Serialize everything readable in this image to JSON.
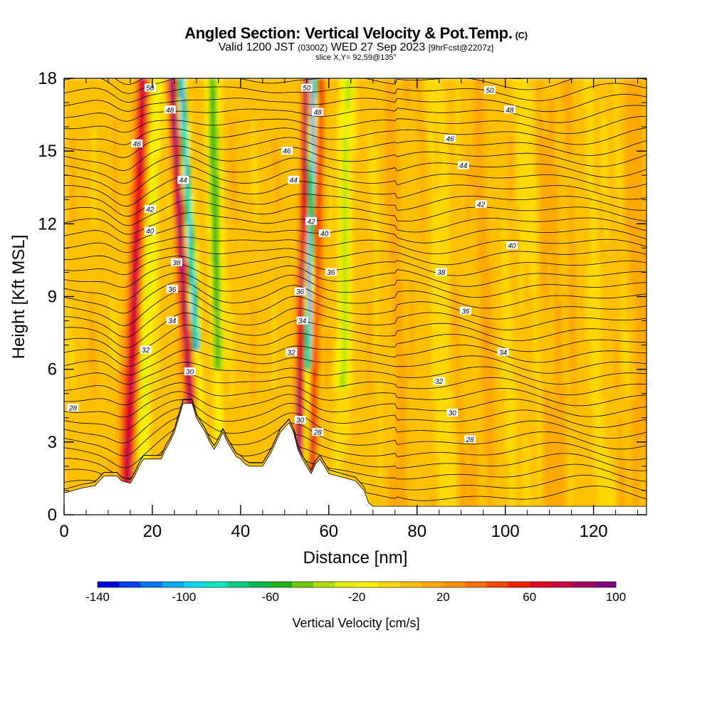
{
  "header": {
    "title": "Angled Section: Vertical Velocity & Pot.Temp.",
    "title_tag": "(C)",
    "subtitle_valid": "Valid 1200 JST",
    "subtitle_zulu": "(0300Z)",
    "subtitle_date": "WED 27 Sep 2023",
    "subtitle_fcst": "[9hrFcst@2207z]",
    "slice": "slice X,Y= 92,59@135°"
  },
  "chart_data": {
    "type": "heatmap",
    "title": "Angled Section: Vertical Velocity & Pot.Temp.",
    "xlabel": "Distance [nm]",
    "ylabel": "Height [Kft MSL]",
    "xlim": [
      0,
      132
    ],
    "ylim": [
      0,
      18
    ],
    "x_ticks": [
      0,
      20,
      40,
      60,
      80,
      100,
      120
    ],
    "y_ticks": [
      0,
      3,
      6,
      9,
      12,
      15,
      18
    ],
    "colorbar": {
      "title": "Vertical Velocity [cm/s]",
      "min": -140,
      "max": 100,
      "step": 10,
      "tick_labels": [
        "-140",
        "-100",
        "-60",
        "-20",
        "20",
        "60",
        "100"
      ],
      "colors": [
        "#0000dc",
        "#0040f0",
        "#0078f8",
        "#00a8f8",
        "#00d8f0",
        "#00e8c0",
        "#00d080",
        "#00b850",
        "#20b020",
        "#70c800",
        "#b0e000",
        "#e8f000",
        "#fff000",
        "#ffd800",
        "#ffc000",
        "#ffa800",
        "#ff9000",
        "#ff7000",
        "#ff4800",
        "#f02000",
        "#e00020",
        "#c80040",
        "#a00060",
        "#800080"
      ]
    },
    "theta_contour_labels": [
      {
        "value": "28",
        "x": 2,
        "y": 4.4
      },
      {
        "value": "32",
        "x": 18.5,
        "y": 6.8
      },
      {
        "value": "34",
        "x": 24.5,
        "y": 8.0
      },
      {
        "value": "36",
        "x": 24.5,
        "y": 9.3
      },
      {
        "value": "38",
        "x": 25.5,
        "y": 10.4
      },
      {
        "value": "40",
        "x": 19.5,
        "y": 11.7
      },
      {
        "value": "42",
        "x": 19.5,
        "y": 12.6
      },
      {
        "value": "44",
        "x": 27,
        "y": 13.8
      },
      {
        "value": "46",
        "x": 16.5,
        "y": 15.3
      },
      {
        "value": "48",
        "x": 24,
        "y": 16.7
      },
      {
        "value": "50",
        "x": 19.5,
        "y": 17.6
      },
      {
        "value": "30",
        "x": 28.5,
        "y": 5.9
      },
      {
        "value": "30",
        "x": 53.5,
        "y": 3.9
      },
      {
        "value": "28",
        "x": 57.5,
        "y": 3.4
      },
      {
        "value": "32",
        "x": 51.5,
        "y": 6.7
      },
      {
        "value": "34",
        "x": 54,
        "y": 8.0
      },
      {
        "value": "36",
        "x": 53.5,
        "y": 9.2
      },
      {
        "value": "36",
        "x": 60.5,
        "y": 10.0
      },
      {
        "value": "40",
        "x": 59,
        "y": 11.6
      },
      {
        "value": "42",
        "x": 56,
        "y": 12.1
      },
      {
        "value": "44",
        "x": 52,
        "y": 13.8
      },
      {
        "value": "46",
        "x": 50.5,
        "y": 15.0
      },
      {
        "value": "48",
        "x": 57.5,
        "y": 16.6
      },
      {
        "value": "50",
        "x": 55,
        "y": 17.6
      },
      {
        "value": "28",
        "x": 92,
        "y": 3.1
      },
      {
        "value": "30",
        "x": 88,
        "y": 4.2
      },
      {
        "value": "32",
        "x": 85,
        "y": 5.5
      },
      {
        "value": "34",
        "x": 99.5,
        "y": 6.7
      },
      {
        "value": "36",
        "x": 91,
        "y": 8.4
      },
      {
        "value": "38",
        "x": 85.5,
        "y": 10.0
      },
      {
        "value": "40",
        "x": 101.5,
        "y": 11.1
      },
      {
        "value": "42",
        "x": 94.5,
        "y": 12.8
      },
      {
        "value": "44",
        "x": 90.5,
        "y": 14.4
      },
      {
        "value": "46",
        "x": 87.5,
        "y": 15.5
      },
      {
        "value": "48",
        "x": 101,
        "y": 16.7
      },
      {
        "value": "50",
        "x": 96.5,
        "y": 17.5
      }
    ]
  }
}
